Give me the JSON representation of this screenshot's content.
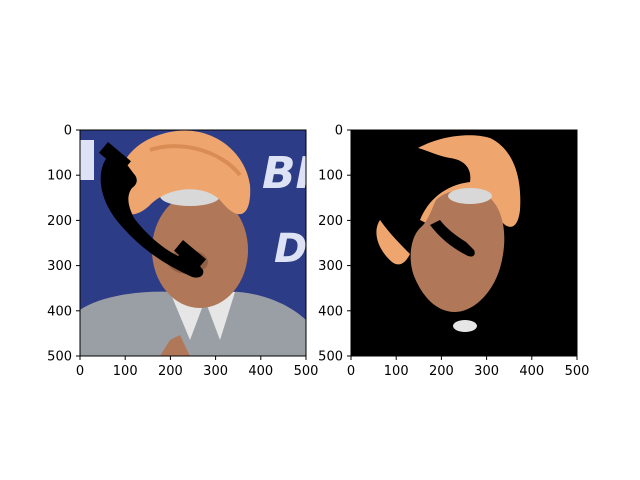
{
  "chart_data": [
    {
      "type": "image",
      "title": "",
      "xlabel": "",
      "ylabel": "",
      "xlim": [
        0,
        500
      ],
      "ylim": [
        500,
        0
      ],
      "xticks": [
        "0",
        "100",
        "200",
        "300",
        "400",
        "500"
      ],
      "yticks": [
        "0",
        "100",
        "200",
        "300",
        "400",
        "500"
      ],
      "grid": false,
      "content": "photo"
    },
    {
      "type": "image",
      "title": "",
      "xlabel": "",
      "ylabel": "",
      "xlim": [
        0,
        500
      ],
      "ylim": [
        500,
        0
      ],
      "xticks": [
        "0",
        "100",
        "200",
        "300",
        "400",
        "500"
      ],
      "yticks": [
        "0",
        "100",
        "200",
        "300",
        "400",
        "500"
      ],
      "grid": false,
      "content": "segmentation-mask"
    }
  ],
  "colors": {
    "turban": "#efa66e",
    "turban_shadow": "#d98c54",
    "background_blue": "#2d3c86",
    "background_text": "#dde3f5",
    "face": "#b07858",
    "face_dark": "#7a4c34",
    "hair": "#d8d8d8",
    "vest": "#9a9fa6",
    "shirt": "#e6e6e6",
    "occluder": "#000000",
    "mask_background": "#000000",
    "axes": "#000000"
  }
}
